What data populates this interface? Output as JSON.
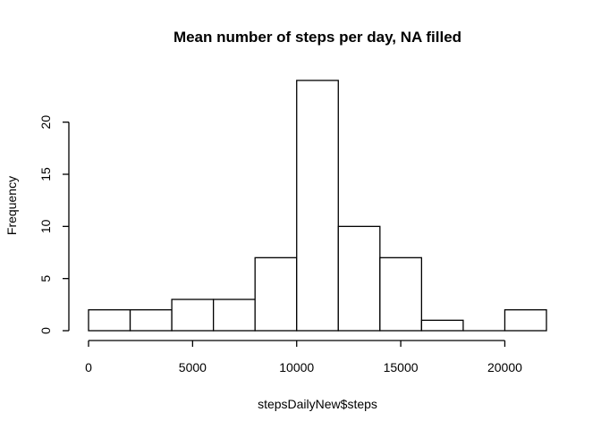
{
  "chart_data": {
    "type": "bar",
    "subtype": "histogram",
    "title": "Mean number of steps per day, NA filled",
    "xlabel": "stepsDaily​New$steps",
    "ylabel": "Frequency",
    "bins": [
      {
        "start": 0,
        "end": 2000,
        "count": 2
      },
      {
        "start": 2000,
        "end": 4000,
        "count": 2
      },
      {
        "start": 4000,
        "end": 6000,
        "count": 3
      },
      {
        "start": 6000,
        "end": 8000,
        "count": 3
      },
      {
        "start": 8000,
        "end": 10000,
        "count": 7
      },
      {
        "start": 10000,
        "end": 12000,
        "count": 24
      },
      {
        "start": 12000,
        "end": 14000,
        "count": 10
      },
      {
        "start": 14000,
        "end": 16000,
        "count": 7
      },
      {
        "start": 16000,
        "end": 18000,
        "count": 1
      },
      {
        "start": 18000,
        "end": 20000,
        "count": 0
      },
      {
        "start": 20000,
        "end": 22000,
        "count": 2
      }
    ],
    "xlim": [
      0,
      22000
    ],
    "ylim": [
      0,
      24
    ],
    "x_ticks": [
      0,
      5000,
      10000,
      15000,
      20000
    ],
    "y_ticks": [
      0,
      5,
      10,
      15,
      20
    ],
    "grid": false,
    "bar_fill": "#ffffff",
    "bar_stroke": "#000000"
  }
}
